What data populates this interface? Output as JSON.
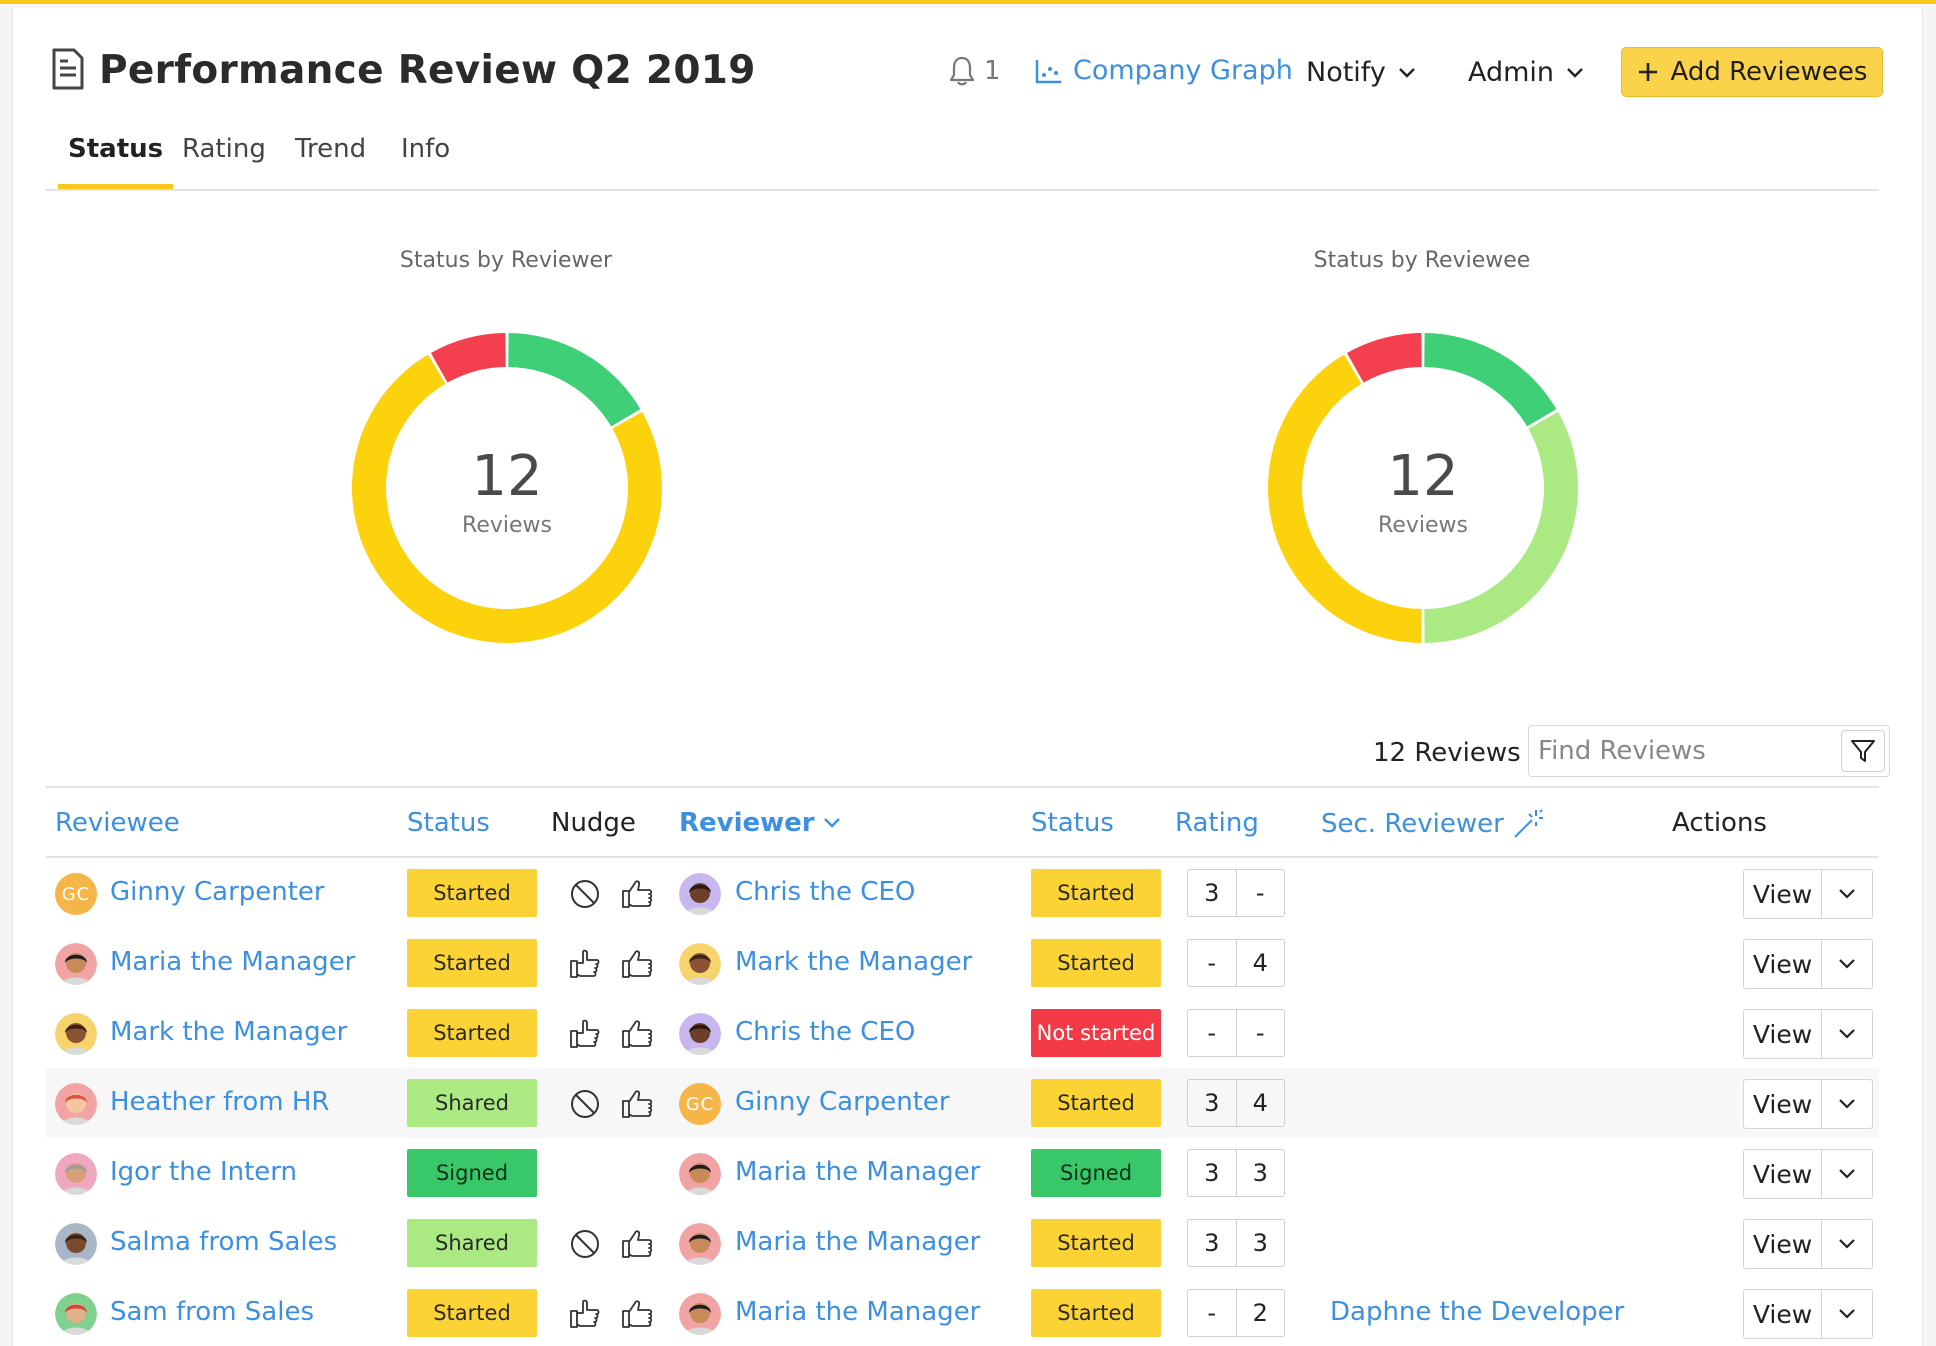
{
  "header": {
    "title": "Performance Review Q2 2019",
    "notification_count": "1",
    "company_graph_label": "Company Graph",
    "notify_label": "Notify",
    "admin_label": "Admin",
    "add_button_label": "Add Reviewees"
  },
  "tabs": [
    {
      "label": "Status",
      "active": true
    },
    {
      "label": "Rating",
      "active": false
    },
    {
      "label": "Trend",
      "active": false
    },
    {
      "label": "Info",
      "active": false
    }
  ],
  "charts": {
    "reviewer": {
      "title": "Status by Reviewer",
      "total": "12",
      "unit": "Reviews"
    },
    "reviewee": {
      "title": "Status by Reviewee",
      "total": "12",
      "unit": "Reviews"
    }
  },
  "chart_data": [
    {
      "type": "pie",
      "title": "Status by Reviewer",
      "categories": [
        "Signed",
        "Started",
        "Not started"
      ],
      "values": [
        2,
        9,
        1
      ],
      "colors": [
        "#3ecf77",
        "#fbd20c",
        "#f4404e"
      ]
    },
    {
      "type": "pie",
      "title": "Status by Reviewee",
      "categories": [
        "Signed",
        "Shared",
        "Started",
        "Not started"
      ],
      "values": [
        2,
        4,
        5,
        1
      ],
      "colors": [
        "#3ecf77",
        "#abea83",
        "#fbd20c",
        "#f4404e"
      ]
    }
  ],
  "reviews_bar": {
    "count_label": "12 Reviews",
    "search_placeholder": "Find Reviews"
  },
  "table": {
    "headers": {
      "reviewee": "Reviewee",
      "status": "Status",
      "nudge": "Nudge",
      "reviewer": "Reviewer",
      "reviewer_status": "Status",
      "rating": "Rating",
      "sec_reviewer": "Sec. Reviewer",
      "actions": "Actions"
    },
    "view_label": "View",
    "rows": [
      {
        "reviewee": "Ginny Carpenter",
        "reviewee_avatar": "GC",
        "status": "Started",
        "nudge": [
          "blocked",
          "thumb"
        ],
        "reviewer": "Chris the CEO",
        "reviewer_status": "Started",
        "rating": [
          "3",
          "-"
        ],
        "sec_reviewer": ""
      },
      {
        "reviewee": "Maria the Manager",
        "reviewee_avatar": "",
        "status": "Started",
        "nudge": [
          "point",
          "thumb"
        ],
        "reviewer": "Mark the Manager",
        "reviewer_status": "Started",
        "rating": [
          "-",
          "4"
        ],
        "sec_reviewer": ""
      },
      {
        "reviewee": "Mark the Manager",
        "reviewee_avatar": "",
        "status": "Started",
        "nudge": [
          "point",
          "thumb"
        ],
        "reviewer": "Chris the CEO",
        "reviewer_status": "Not started",
        "rating": [
          "-",
          "-"
        ],
        "sec_reviewer": ""
      },
      {
        "reviewee": "Heather from HR",
        "reviewee_avatar": "",
        "status": "Shared",
        "nudge": [
          "blocked",
          "thumb"
        ],
        "reviewer": "Ginny Carpenter",
        "reviewer_status": "Started",
        "rating": [
          "3",
          "4"
        ],
        "sec_reviewer": ""
      },
      {
        "reviewee": "Igor the Intern",
        "reviewee_avatar": "",
        "status": "Signed",
        "nudge": [],
        "reviewer": "Maria the Manager",
        "reviewer_status": "Signed",
        "rating": [
          "3",
          "3"
        ],
        "sec_reviewer": ""
      },
      {
        "reviewee": "Salma from Sales",
        "reviewee_avatar": "",
        "status": "Shared",
        "nudge": [
          "blocked",
          "thumb"
        ],
        "reviewer": "Maria the Manager",
        "reviewer_status": "Started",
        "rating": [
          "3",
          "3"
        ],
        "sec_reviewer": ""
      },
      {
        "reviewee": "Sam from Sales",
        "reviewee_avatar": "",
        "status": "Started",
        "nudge": [
          "point",
          "thumb"
        ],
        "reviewer": "Maria the Manager",
        "reviewer_status": "Started",
        "rating": [
          "-",
          "2"
        ],
        "sec_reviewer": "Daphne the Developer"
      }
    ]
  },
  "colors": {
    "accent": "#f8c91b",
    "link": "#3d8fe0",
    "started": "#fbd335",
    "shared": "#abea83",
    "signed": "#38c86a",
    "not_started": "#f23a46"
  }
}
